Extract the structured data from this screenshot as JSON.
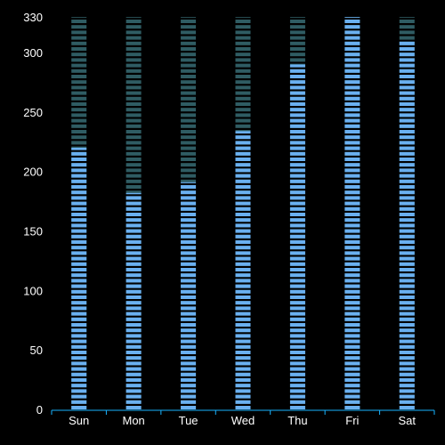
{
  "chart_data": {
    "type": "bar",
    "categories": [
      "Sun",
      "Mon",
      "Tue",
      "Wed",
      "Thu",
      "Fri",
      "Sat"
    ],
    "series": [
      {
        "values": [
          220,
          182,
          191,
          234,
          290,
          330,
          310
        ]
      }
    ],
    "background_max": 330,
    "yticks": [
      0,
      50,
      100,
      150,
      200,
      250,
      300,
      330
    ],
    "ylim": [
      0,
      330
    ],
    "grid": false,
    "legend": "none",
    "colors": {
      "bar": "#6ab0f0",
      "bar_background": "#2f5c63",
      "axis": "#19b3ff",
      "text": "#ffffff",
      "background": "#000000"
    }
  }
}
